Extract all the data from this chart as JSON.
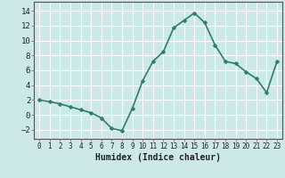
{
  "x": [
    0,
    1,
    2,
    3,
    4,
    5,
    6,
    7,
    8,
    9,
    10,
    11,
    12,
    13,
    14,
    15,
    16,
    17,
    18,
    19,
    20,
    21,
    22,
    23
  ],
  "y": [
    2.0,
    1.8,
    1.5,
    1.1,
    0.7,
    0.3,
    -0.4,
    -1.8,
    -2.1,
    0.9,
    4.6,
    7.2,
    8.5,
    11.7,
    12.7,
    13.7,
    12.4,
    9.4,
    7.2,
    6.9,
    5.8,
    4.9,
    3.0,
    7.2
  ],
  "line_color": "#2d7d6e",
  "marker": "D",
  "marker_size": 2.5,
  "bg_color": "#cce8e8",
  "grid_color": "#ffffff",
  "tick_label_color": "#222222",
  "xlabel": "Humidex (Indice chaleur)",
  "xlabel_fontsize": 7,
  "xlim": [
    -0.5,
    23.5
  ],
  "ylim": [
    -3.2,
    15.2
  ],
  "yticks": [
    -2,
    0,
    2,
    4,
    6,
    8,
    10,
    12,
    14
  ],
  "xticks": [
    0,
    1,
    2,
    3,
    4,
    5,
    6,
    7,
    8,
    9,
    10,
    11,
    12,
    13,
    14,
    15,
    16,
    17,
    18,
    19,
    20,
    21,
    22,
    23
  ],
  "linewidth": 1.2,
  "grid_linewidth": 0.8
}
